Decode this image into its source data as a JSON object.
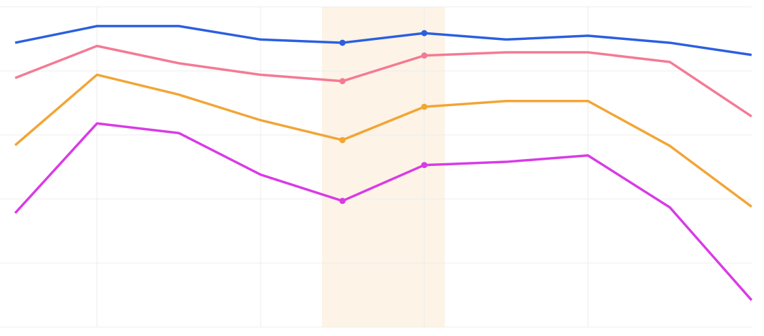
{
  "chart_data": {
    "type": "line",
    "x": [
      0,
      1,
      2,
      3,
      4,
      5,
      6,
      7,
      8,
      9
    ],
    "xlim": [
      0,
      9
    ],
    "xticks": [
      1,
      3,
      5,
      7
    ],
    "ylim": [
      0,
      5
    ],
    "yticks": [
      0,
      1,
      2,
      3,
      4,
      5
    ],
    "grid": true,
    "highlight": [
      3.75,
      5.25
    ],
    "highlight_color": "#fdf3e6",
    "marked_x": [
      4,
      5
    ],
    "series": [
      {
        "color": "#2b5fe0",
        "values": [
          4.44,
          4.7,
          4.7,
          4.49,
          4.44,
          4.59,
          4.49,
          4.55,
          4.44,
          4.25
        ]
      },
      {
        "color": "#f47a94",
        "values": [
          3.89,
          4.39,
          4.12,
          3.94,
          3.84,
          4.24,
          4.29,
          4.29,
          4.14,
          3.29
        ]
      },
      {
        "color": "#f2a534",
        "values": [
          2.84,
          3.94,
          3.63,
          3.23,
          2.92,
          3.44,
          3.53,
          3.53,
          2.83,
          1.88
        ]
      },
      {
        "color": "#d93ae6",
        "values": [
          1.78,
          3.18,
          3.03,
          2.38,
          1.97,
          2.53,
          2.58,
          2.68,
          1.87,
          0.42
        ]
      }
    ]
  }
}
